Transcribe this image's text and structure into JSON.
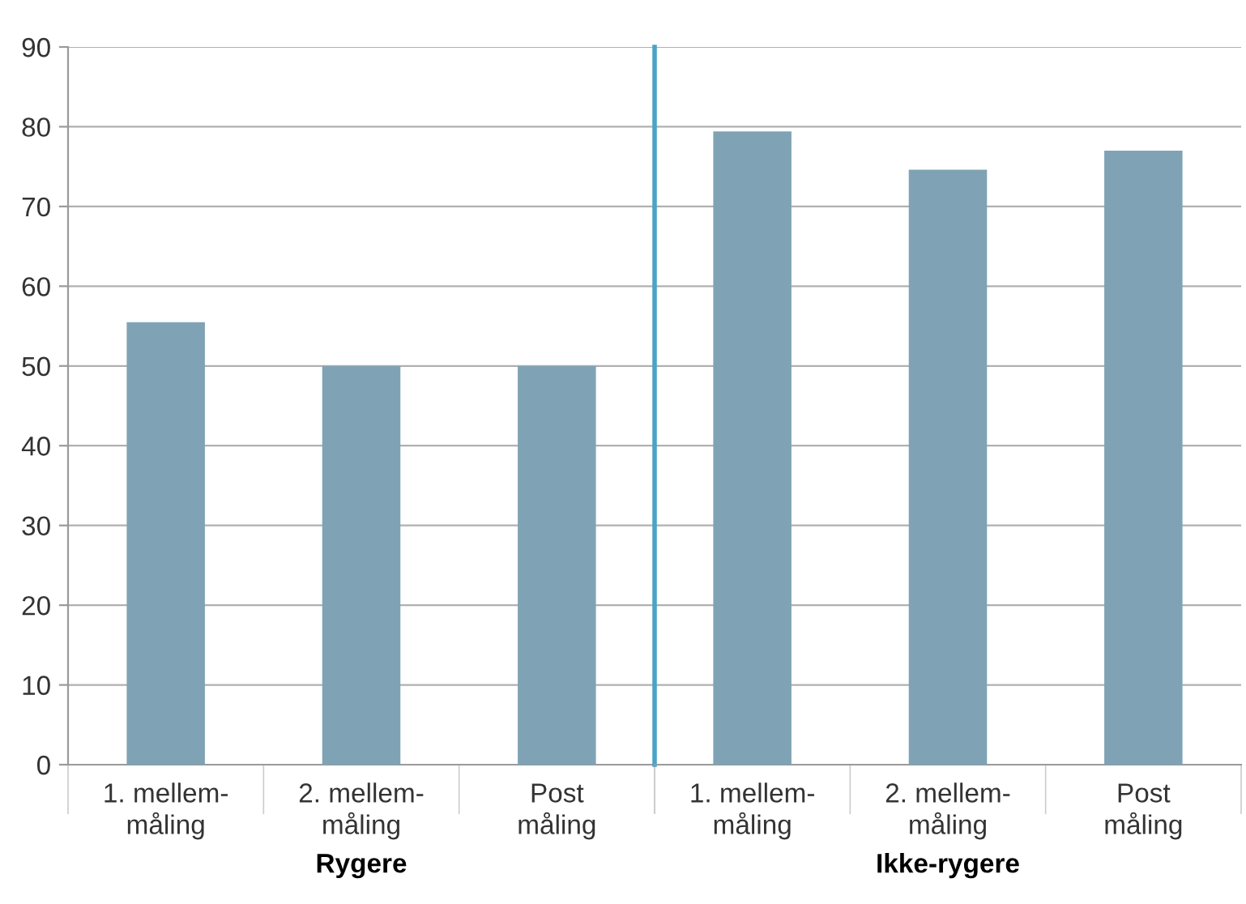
{
  "chart_data": [
    {
      "type": "bar",
      "xlabel": "Rygere",
      "categories": [
        "1. mellem-\nmåling",
        "2. mellem-\nmåling",
        "Post\nmåling"
      ],
      "values": [
        55.5,
        50,
        50
      ],
      "color": "#7fa3b5",
      "ylim": [
        0,
        90
      ],
      "yticks": [
        0,
        10,
        20,
        30,
        40,
        50,
        60,
        70,
        80,
        90
      ],
      "grid": "y"
    },
    {
      "type": "bar",
      "xlabel": "Ikke-rygere",
      "categories": [
        "1. mellem-\nmåling",
        "2. mellem-\nmåling",
        "Post\nmåling"
      ],
      "values": [
        79.4,
        74.6,
        77
      ],
      "color": "#7fa3b5",
      "ylim": [
        0,
        90
      ],
      "yticks": [
        0,
        10,
        20,
        30,
        40,
        50,
        60,
        70,
        80,
        90
      ],
      "grid": "y",
      "tick_labels": "x"
    }
  ]
}
